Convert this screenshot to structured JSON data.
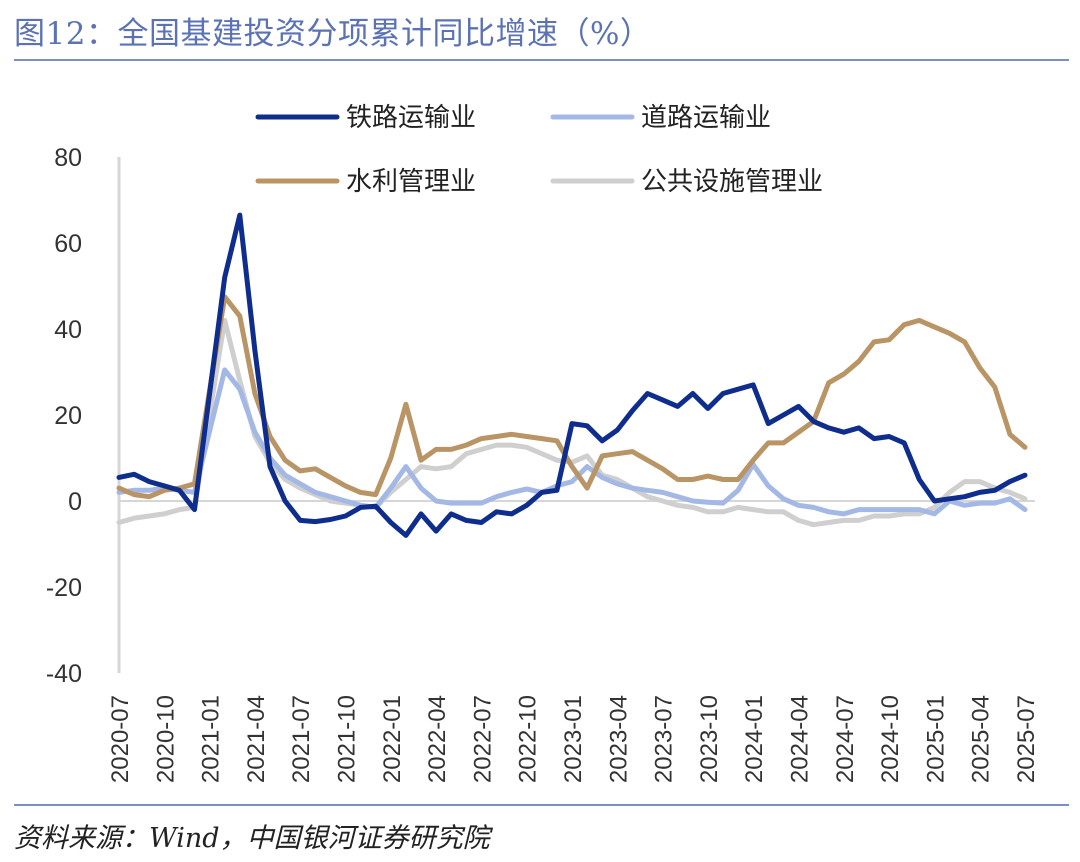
{
  "header": {
    "title": "图12：全国基建投资分项累计同比增速（%）"
  },
  "footer": {
    "source": "资料来源：Wind，中国银河证券研究院"
  },
  "chart_data": {
    "type": "line",
    "title": "图12：全国基建投资分项累计同比增速（%）",
    "xlabel": "",
    "ylabel": "",
    "ylim": [
      -40,
      80
    ],
    "yticks": [
      80,
      60,
      40,
      20,
      0,
      -20,
      -40
    ],
    "x_tick_labels": [
      "2020-07",
      "2020-10",
      "2021-01",
      "2021-04",
      "2021-07",
      "2021-10",
      "2022-01",
      "2022-04",
      "2022-07",
      "2022-10",
      "2023-01",
      "2023-04",
      "2023-07",
      "2023-10",
      "2024-01",
      "2024-04",
      "2024-07",
      "2024-10",
      "2025-01",
      "2025-04",
      "2025-07"
    ],
    "x": [
      "2020-07",
      "2020-08",
      "2020-09",
      "2020-10",
      "2020-11",
      "2020-12",
      "2021-01",
      "2021-02",
      "2021-03",
      "2021-04",
      "2021-05",
      "2021-06",
      "2021-07",
      "2021-08",
      "2021-09",
      "2021-10",
      "2021-11",
      "2021-12",
      "2022-01",
      "2022-02",
      "2022-03",
      "2022-04",
      "2022-05",
      "2022-06",
      "2022-07",
      "2022-08",
      "2022-09",
      "2022-10",
      "2022-11",
      "2022-12",
      "2023-01",
      "2023-02",
      "2023-03",
      "2023-04",
      "2023-05",
      "2023-06",
      "2023-07",
      "2023-08",
      "2023-09",
      "2023-10",
      "2023-11",
      "2023-12",
      "2024-01",
      "2024-02",
      "2024-03",
      "2024-04",
      "2024-05",
      "2024-06",
      "2024-07",
      "2024-08",
      "2024-09",
      "2024-10",
      "2024-11",
      "2024-12",
      "2025-01",
      "2025-02",
      "2025-03",
      "2025-04",
      "2025-05",
      "2025-06",
      "2025-07"
    ],
    "legend_position": "top",
    "grid": false,
    "series": [
      {
        "name": "铁路运输业",
        "color": "#0f2d8c",
        "values": [
          5.5,
          6.2,
          4.5,
          3.5,
          2.5,
          -2.0,
          null,
          52.0,
          66.5,
          35.0,
          8.0,
          0.0,
          -4.5,
          -4.8,
          -4.3,
          -3.5,
          -1.5,
          -1.2,
          -5.0,
          -8.0,
          -3.0,
          -7.0,
          -3.0,
          -4.5,
          -5.0,
          -2.5,
          -3.0,
          -1.0,
          2.0,
          2.5,
          18.0,
          17.5,
          14.0,
          16.5,
          21.0,
          25.0,
          23.5,
          22.0,
          25.0,
          21.5,
          25.0,
          26.0,
          27.0,
          18.0,
          20.0,
          22.0,
          18.5,
          17.0,
          16.0,
          17.0,
          14.5,
          15.0,
          13.5,
          5.0,
          0.0,
          0.5,
          1.0,
          2.0,
          2.5,
          4.5,
          6.0
        ]
      },
      {
        "name": "道路运输业",
        "color": "#a4b8e6",
        "values": [
          2.0,
          2.5,
          2.5,
          3.0,
          2.5,
          2.0,
          null,
          30.5,
          26.0,
          16.0,
          10.0,
          6.0,
          4.0,
          2.0,
          1.0,
          0.0,
          -1.0,
          -1.5,
          3.0,
          8.0,
          3.0,
          0.0,
          -0.5,
          -0.5,
          -0.5,
          1.0,
          2.0,
          2.8,
          2.0,
          3.5,
          4.5,
          8.0,
          5.5,
          4.0,
          3.0,
          2.5,
          2.0,
          1.0,
          0.0,
          -0.3,
          -0.5,
          2.5,
          8.5,
          3.5,
          0.5,
          -1.0,
          -1.5,
          -2.5,
          -3.0,
          -2.0,
          -2.0,
          -2.0,
          -2.0,
          -2.0,
          -3.0,
          0.0,
          -1.0,
          -0.5,
          -0.5,
          0.5,
          -2.0
        ]
      },
      {
        "name": "水利管理业",
        "color": "#b99566",
        "values": [
          3.0,
          1.5,
          1.0,
          2.5,
          3.0,
          4.0,
          null,
          47.5,
          43.0,
          25.0,
          15.0,
          9.5,
          7.0,
          7.5,
          5.5,
          3.5,
          2.0,
          1.5,
          10.0,
          22.5,
          9.5,
          12.0,
          12.0,
          13.0,
          14.5,
          15.0,
          15.5,
          15.0,
          14.5,
          14.0,
          8.0,
          3.0,
          10.5,
          11.0,
          11.5,
          9.5,
          7.5,
          5.0,
          5.0,
          5.8,
          5.0,
          5.0,
          9.5,
          13.5,
          13.5,
          16.0,
          18.5,
          27.5,
          29.5,
          32.5,
          37.0,
          37.5,
          41.0,
          42.0,
          40.5,
          39.0,
          37.0,
          31.0,
          26.5,
          15.5,
          12.5
        ]
      },
      {
        "name": "公共设施管理业",
        "color": "#cfcfcf",
        "values": [
          -5.0,
          -4.0,
          -3.5,
          -3.0,
          -2.0,
          -1.5,
          null,
          42.0,
          28.0,
          15.0,
          9.0,
          5.0,
          3.0,
          1.5,
          0.0,
          -0.5,
          -1.0,
          -1.5,
          2.0,
          5.0,
          8.0,
          7.5,
          8.0,
          11.0,
          12.0,
          13.0,
          13.0,
          12.5,
          11.0,
          9.5,
          9.0,
          10.5,
          6.0,
          5.0,
          3.0,
          1.0,
          0.0,
          -1.0,
          -1.5,
          -2.5,
          -2.5,
          -1.5,
          -2.0,
          -2.5,
          -2.5,
          -4.5,
          -5.5,
          -5.0,
          -4.5,
          -4.5,
          -3.5,
          -3.5,
          -3.0,
          -3.0,
          -1.5,
          2.0,
          4.5,
          4.5,
          3.0,
          2.0,
          0.5
        ]
      }
    ]
  }
}
